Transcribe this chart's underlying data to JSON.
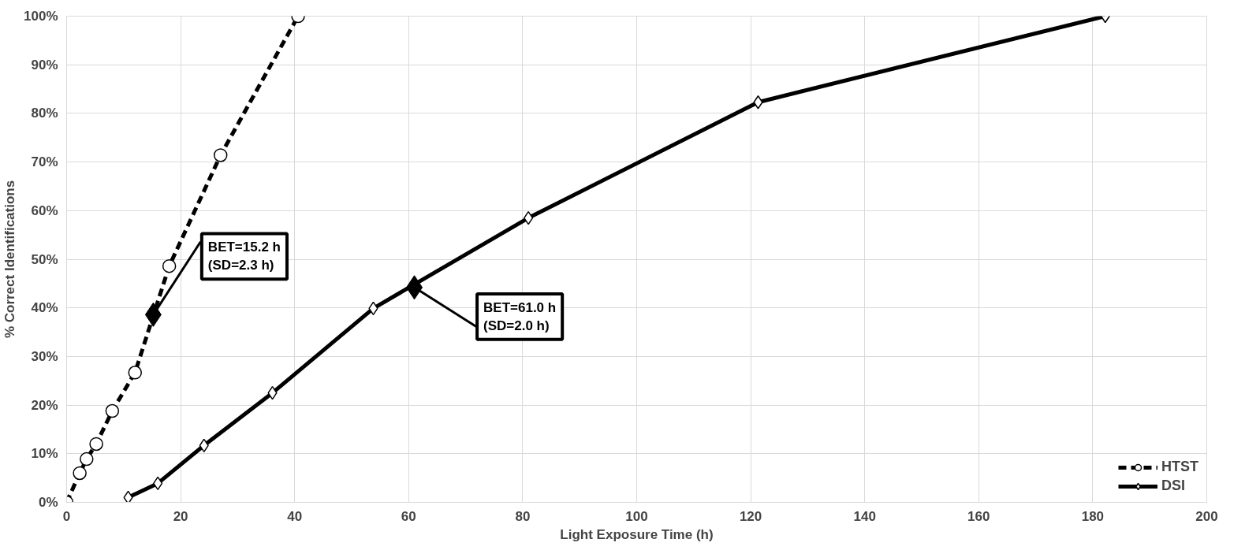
{
  "chart_data": {
    "type": "line",
    "xlabel": "Light Exposure Time (h)",
    "ylabel": "% Correct Identifications",
    "series": [
      {
        "name": "HTST",
        "color": "#000000",
        "line_style": "dashed",
        "marker": "circle",
        "x": [
          0,
          2.3,
          3.5,
          5.2,
          8.0,
          12.0,
          18.0,
          27.0,
          40.6
        ],
        "values": [
          0,
          6.0,
          8.9,
          12.0,
          18.8,
          26.7,
          48.6,
          71.4,
          100
        ]
      },
      {
        "name": "DSI",
        "color": "#000000",
        "line_style": "solid",
        "marker": "diamond",
        "x": [
          10.8,
          16.0,
          24.1,
          36.1,
          53.8,
          81.0,
          121.3,
          182.2
        ],
        "values": [
          1.0,
          3.9,
          11.7,
          22.5,
          39.9,
          58.5,
          82.3,
          100
        ]
      },
      {
        "type": "scatter",
        "color": "#000000",
        "marker": "diamond",
        "x": [
          15.2,
          61.0
        ],
        "values": [
          38.6,
          44.2
        ]
      }
    ],
    "annotations": [
      {
        "text": "BET=15.2 h\n(SD=2.3 h)",
        "x": 15.2,
        "y": 38.6
      },
      {
        "text": "BET=61.0 h\n(SD=2.0 h)",
        "x": 61.0,
        "y": 44.2
      }
    ],
    "xlim": [
      0,
      200
    ],
    "xticks": [
      0,
      20,
      40,
      60,
      80,
      100,
      120,
      140,
      160,
      180,
      200
    ],
    "ylim": [
      0,
      100
    ],
    "yticks": [
      {
        "value": 0,
        "label": "0%"
      },
      {
        "value": 10,
        "label": "10%"
      },
      {
        "value": 20,
        "label": "20%"
      },
      {
        "value": 30,
        "label": "30%"
      },
      {
        "value": 40,
        "label": "40%"
      },
      {
        "value": 50,
        "label": "50%"
      },
      {
        "value": 60,
        "label": "60%"
      },
      {
        "value": 70,
        "label": "70%"
      },
      {
        "value": 80,
        "label": "80%"
      },
      {
        "value": 90,
        "label": "90%"
      },
      {
        "value": 100,
        "label": "100%"
      }
    ],
    "grid": true,
    "legend": "bottom right"
  }
}
